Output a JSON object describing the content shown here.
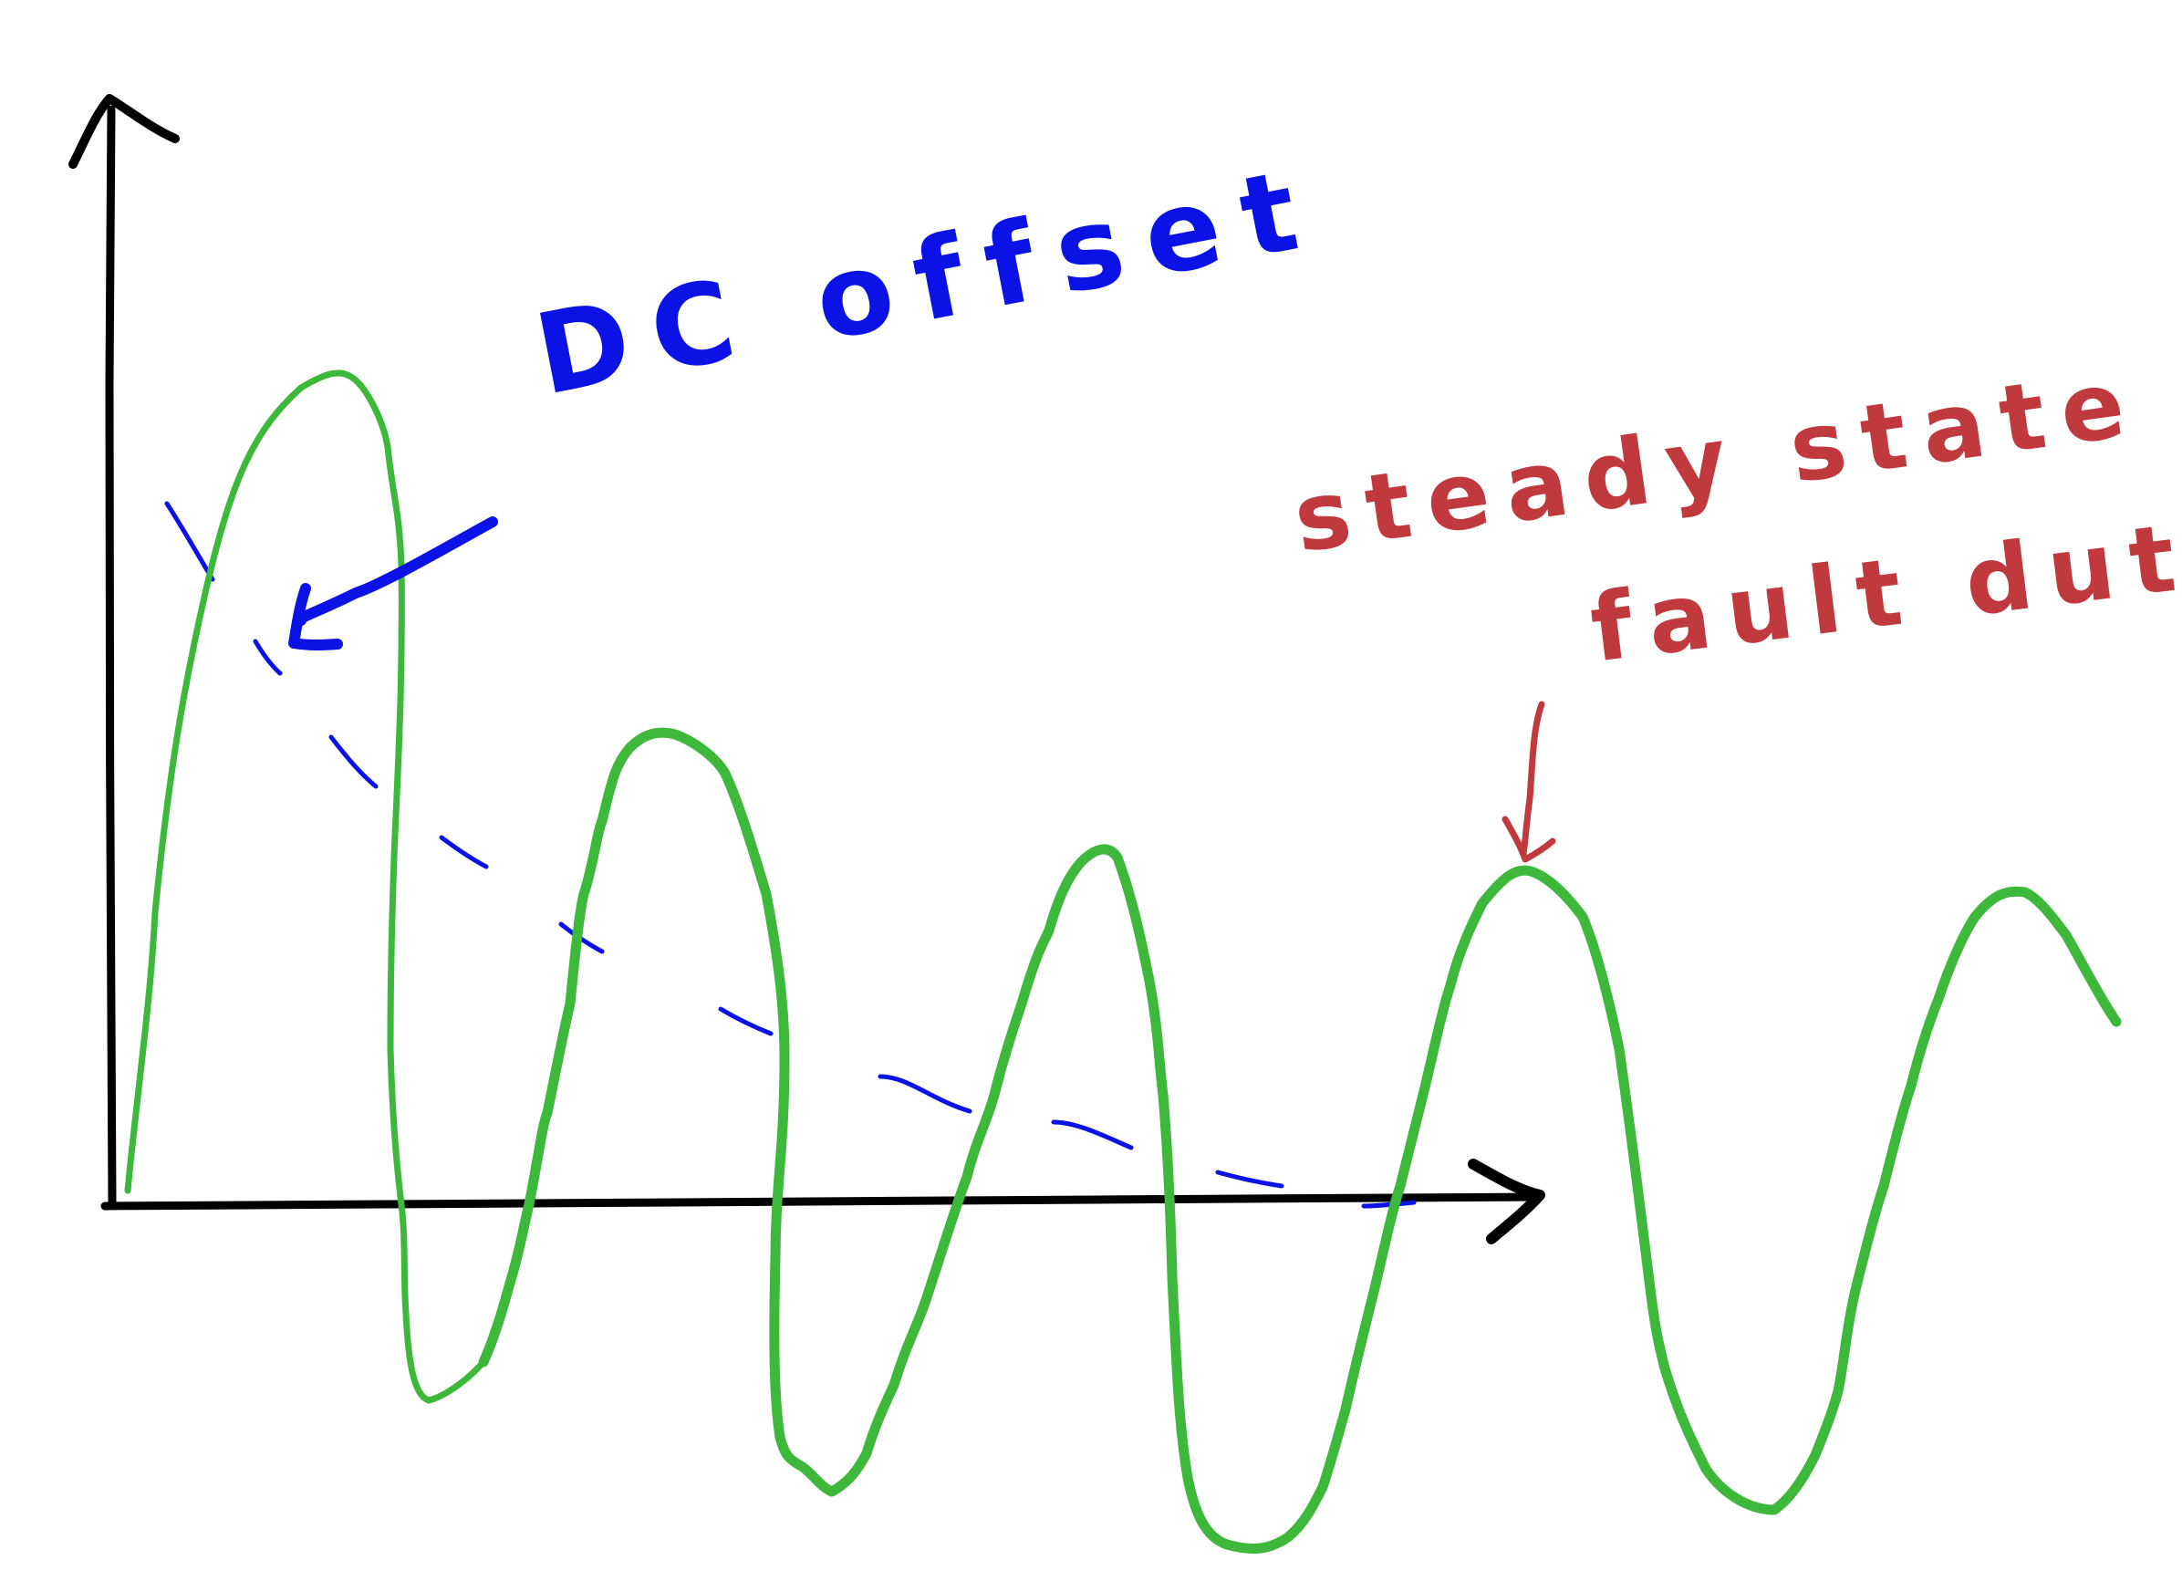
{
  "annotations": {
    "dc_offset": {
      "text": "DC offset",
      "color": "#0a12e6"
    },
    "steady_state_line1": {
      "text": "steady state",
      "color": "#c0393d"
    },
    "steady_state_line2": {
      "text": "fault duty",
      "color": "#c0393d"
    }
  },
  "colors": {
    "axes": "#000000",
    "waveform": "#3db83a",
    "dc_offset_curve": "#0a12e6",
    "steady_state_arrow": "#c0393d"
  }
}
